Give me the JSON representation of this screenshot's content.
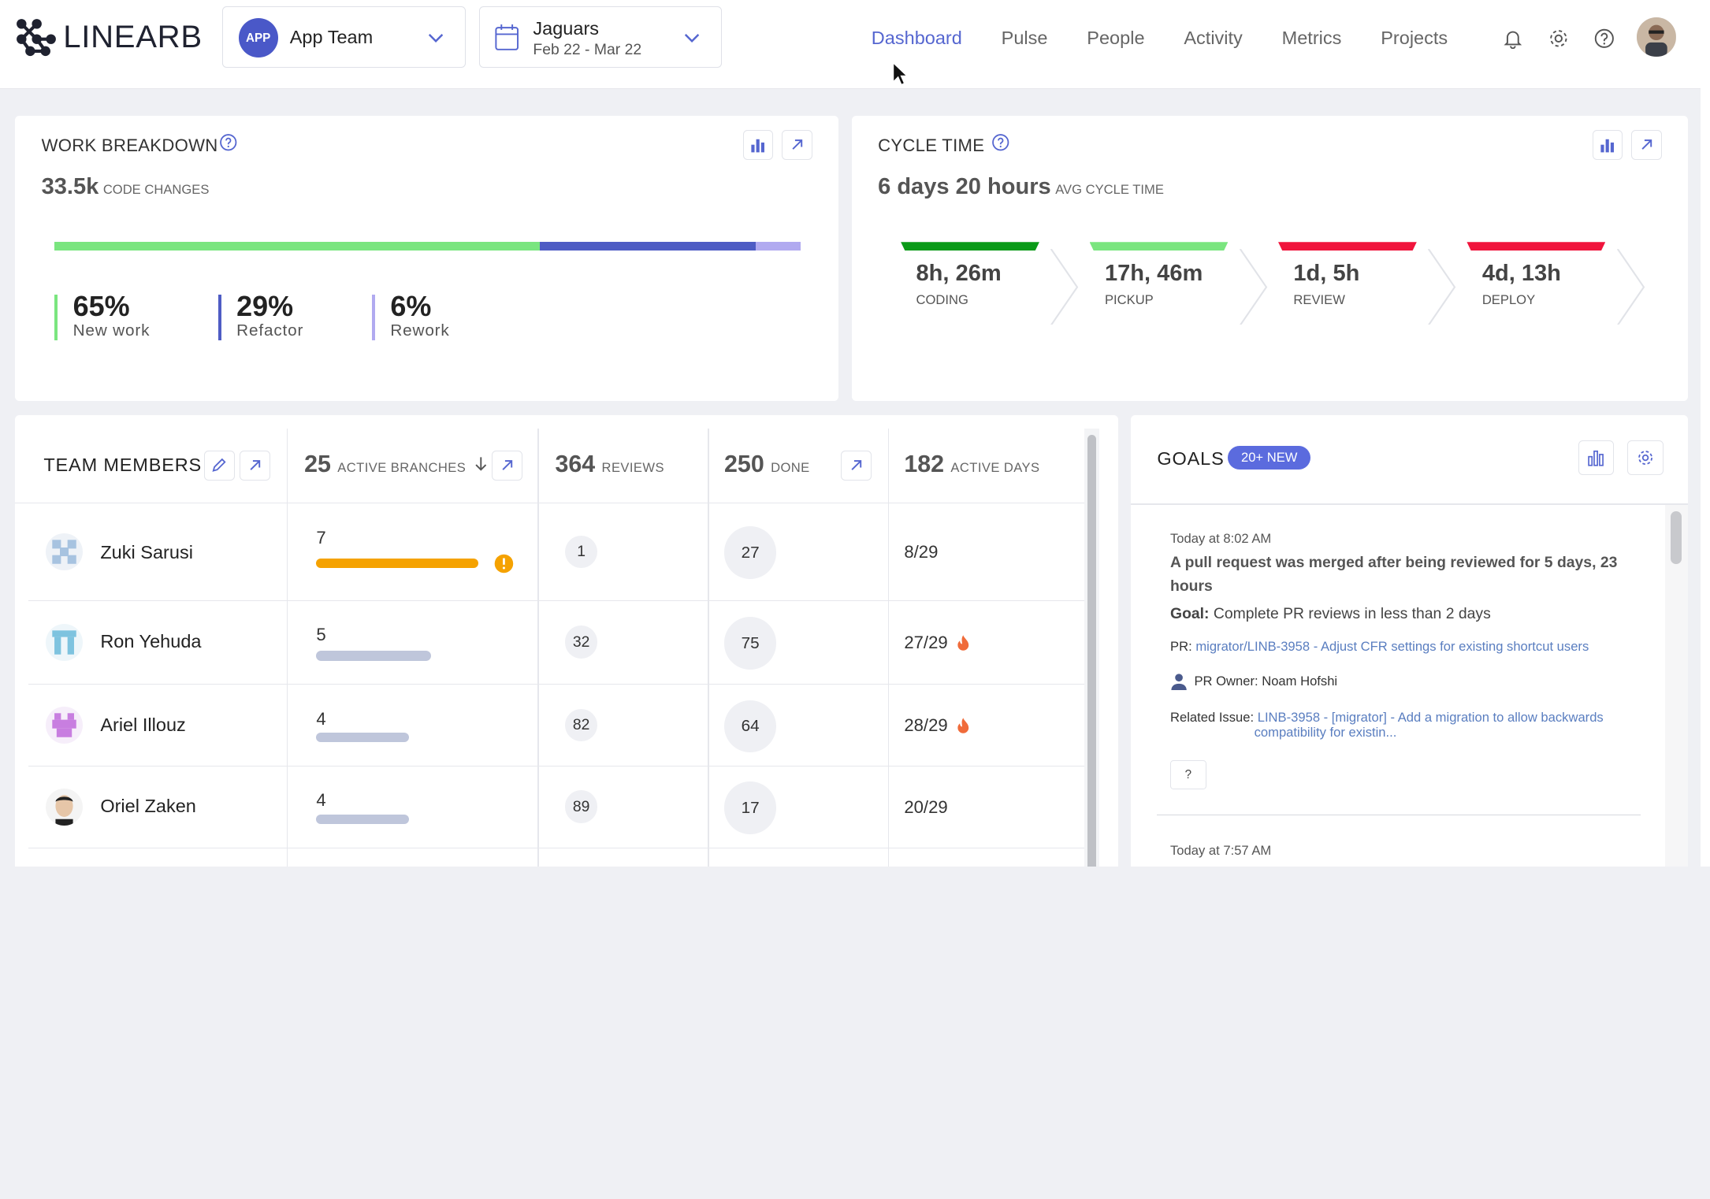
{
  "header": {
    "logo_text": "LINEARB",
    "team_picker": {
      "avatar_text": "APP",
      "name": "App Team"
    },
    "date_picker": {
      "name": "Jaguars",
      "range": "Feb 22 - Mar 22"
    },
    "nav": [
      {
        "label": "Dashboard",
        "active": true
      },
      {
        "label": "Pulse",
        "active": false
      },
      {
        "label": "People",
        "active": false
      },
      {
        "label": "Activity",
        "active": false
      },
      {
        "label": "Metrics",
        "active": false
      },
      {
        "label": "Projects",
        "active": false
      }
    ],
    "icons": [
      "bell-icon",
      "gear-icon",
      "help-icon",
      "user-avatar"
    ]
  },
  "work_breakdown": {
    "title": "WORK BREAKDOWN",
    "value": "33.5k",
    "caption": "CODE CHANGES",
    "segments": [
      {
        "label": "New work",
        "pct": "65%",
        "fraction": 0.65,
        "color": "#7ae57f"
      },
      {
        "label": "Refactor",
        "pct": "29%",
        "fraction": 0.29,
        "color": "#4e5cc4"
      },
      {
        "label": "Rework",
        "pct": "6%",
        "fraction": 0.06,
        "color": "#b1aaf0"
      }
    ]
  },
  "cycle_time": {
    "title": "CYCLE TIME",
    "value": "6 days 20 hours",
    "caption": "AVG CYCLE TIME",
    "stages": [
      {
        "value": "8h, 26m",
        "label": "CODING",
        "color": "#0a9a18"
      },
      {
        "value": "17h, 46m",
        "label": "PICKUP",
        "color": "#7ae57f"
      },
      {
        "value": "1d, 5h",
        "label": "REVIEW",
        "color": "#f0143c"
      },
      {
        "value": "4d, 13h",
        "label": "DEPLOY",
        "color": "#f0143c"
      }
    ]
  },
  "team_members": {
    "title": "TEAM MEMBERS",
    "columns": {
      "branches": {
        "value": "25",
        "caption": "ACTIVE BRANCHES"
      },
      "reviews": {
        "value": "364",
        "caption": "REVIEWS"
      },
      "done": {
        "value": "250",
        "caption": "DONE"
      },
      "days": {
        "value": "182",
        "caption": "ACTIVE DAYS"
      }
    },
    "rows": [
      {
        "name": "Zuki Sarusi",
        "branches": "7",
        "branch_fraction": 0.93,
        "warning": true,
        "reviews": "1",
        "done": "27",
        "days": "8/29",
        "fire": false
      },
      {
        "name": "Ron Yehuda",
        "branches": "5",
        "branch_fraction": 0.66,
        "warning": false,
        "reviews": "32",
        "done": "75",
        "days": "27/29",
        "fire": true
      },
      {
        "name": "Ariel Illouz",
        "branches": "4",
        "branch_fraction": 0.53,
        "warning": false,
        "reviews": "82",
        "done": "64",
        "days": "28/29",
        "fire": true
      },
      {
        "name": "Oriel Zaken",
        "branches": "4",
        "branch_fraction": 0.53,
        "warning": false,
        "reviews": "89",
        "done": "17",
        "days": "20/29",
        "fire": false
      }
    ],
    "colors": {
      "warning_bar": "#f5a200",
      "normal_bar": "#bfc6db",
      "fire": "#f06b3a"
    }
  },
  "goals": {
    "title": "GOALS",
    "badge": "20+ NEW",
    "items": [
      {
        "time": "Today at 8:02 AM",
        "headline": "A pull request was merged after being reviewed for 5 days, 23 hours",
        "goal_label": "Goal:",
        "goal_text": "Complete PR reviews in less than 2 days",
        "pr_label": "PR:",
        "pr_link": "migrator/LINB-3958 - Adjust CFR settings for existing shortcut users",
        "owner": "PR Owner: Noam Hofshi",
        "issue_label": "Related Issue:",
        "issue_line1": "LINB-3958 - [migrator] - Add a migration to allow backwards",
        "issue_line2": "compatibility for existin...",
        "button": "?"
      },
      {
        "time": "Today at 7:57 AM"
      }
    ]
  }
}
